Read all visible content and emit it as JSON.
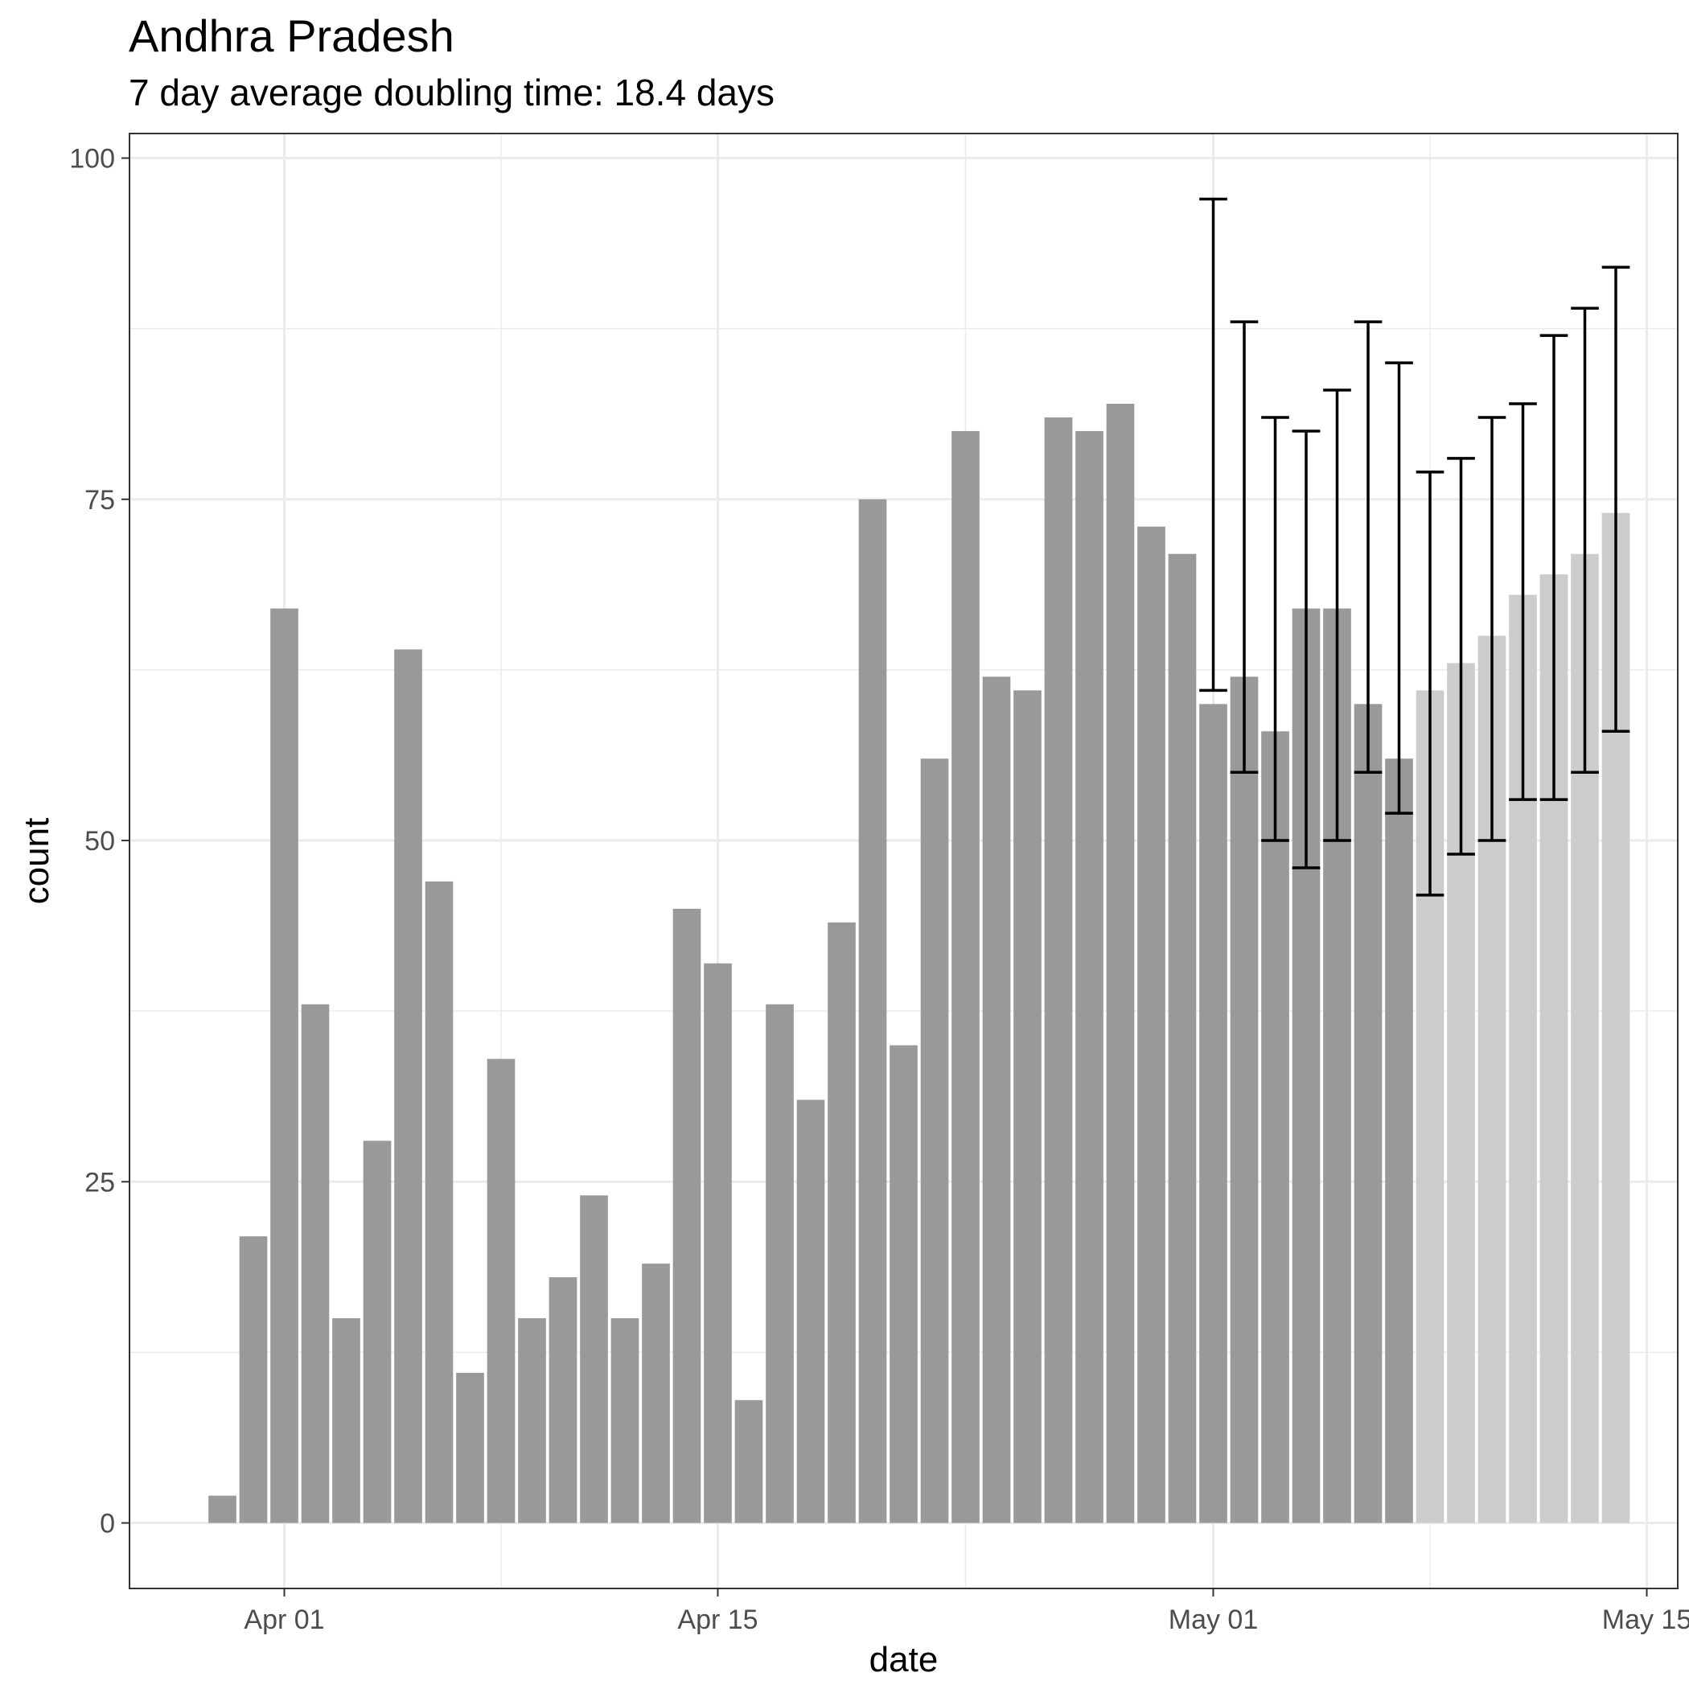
{
  "chart_data": {
    "type": "bar",
    "title": "Andhra Pradesh",
    "subtitle": "7 day average doubling time: 18.4 days",
    "xlabel": "date",
    "ylabel": "count",
    "ylim": [
      -4.8,
      101.8
    ],
    "yticks": [
      0,
      25,
      50,
      75,
      100
    ],
    "xticks": [
      {
        "date": "2020-04-01",
        "label": "Apr 01"
      },
      {
        "date": "2020-04-15",
        "label": "Apr 15"
      },
      {
        "date": "2020-05-01",
        "label": "May 01"
      },
      {
        "date": "2020-05-15",
        "label": "May 15"
      }
    ],
    "xlim": [
      "2020-03-27",
      "2020-05-16"
    ],
    "grid": true,
    "colors": {
      "observed": "#999999",
      "projected": "#cccccc",
      "error_bar": "#000000",
      "grid": "#ebebeb"
    },
    "series": [
      {
        "name": "observed",
        "dates": [
          "2020-03-30",
          "2020-03-31",
          "2020-04-01",
          "2020-04-02",
          "2020-04-03",
          "2020-04-04",
          "2020-04-05",
          "2020-04-06",
          "2020-04-07",
          "2020-04-08",
          "2020-04-09",
          "2020-04-10",
          "2020-04-11",
          "2020-04-12",
          "2020-04-13",
          "2020-04-14",
          "2020-04-15",
          "2020-04-16",
          "2020-04-17",
          "2020-04-18",
          "2020-04-19",
          "2020-04-20",
          "2020-04-21",
          "2020-04-22",
          "2020-04-23",
          "2020-04-24",
          "2020-04-25",
          "2020-04-26",
          "2020-04-27",
          "2020-04-28",
          "2020-04-29",
          "2020-04-30",
          "2020-05-01",
          "2020-05-02",
          "2020-05-03",
          "2020-05-04",
          "2020-05-05",
          "2020-05-06",
          "2020-05-07"
        ],
        "values": [
          2,
          21,
          67,
          38,
          15,
          28,
          64,
          47,
          11,
          34,
          15,
          18,
          24,
          15,
          19,
          45,
          41,
          9,
          38,
          31,
          44,
          75,
          35,
          56,
          80,
          62,
          61,
          81,
          80,
          82,
          73,
          71,
          60,
          62,
          58,
          67,
          67,
          60,
          56
        ]
      },
      {
        "name": "projected",
        "dates": [
          "2020-05-08",
          "2020-05-09",
          "2020-05-10",
          "2020-05-11",
          "2020-05-12",
          "2020-05-13",
          "2020-05-14"
        ],
        "values": [
          61,
          63,
          65,
          68,
          69.5,
          71,
          74
        ]
      }
    ],
    "error_bars": [
      {
        "date": "2020-05-01",
        "low": 61,
        "high": 97
      },
      {
        "date": "2020-05-02",
        "low": 55,
        "high": 88
      },
      {
        "date": "2020-05-03",
        "low": 50,
        "high": 81
      },
      {
        "date": "2020-05-04",
        "low": 48,
        "high": 80
      },
      {
        "date": "2020-05-05",
        "low": 50,
        "high": 83
      },
      {
        "date": "2020-05-06",
        "low": 55,
        "high": 88
      },
      {
        "date": "2020-05-07",
        "low": 52,
        "high": 85
      },
      {
        "date": "2020-05-08",
        "low": 46,
        "high": 77
      },
      {
        "date": "2020-05-09",
        "low": 49,
        "high": 78
      },
      {
        "date": "2020-05-10",
        "low": 50,
        "high": 81
      },
      {
        "date": "2020-05-11",
        "low": 53,
        "high": 82
      },
      {
        "date": "2020-05-12",
        "low": 53,
        "high": 87
      },
      {
        "date": "2020-05-13",
        "low": 55,
        "high": 89
      },
      {
        "date": "2020-05-14",
        "low": 58,
        "high": 92
      }
    ]
  }
}
